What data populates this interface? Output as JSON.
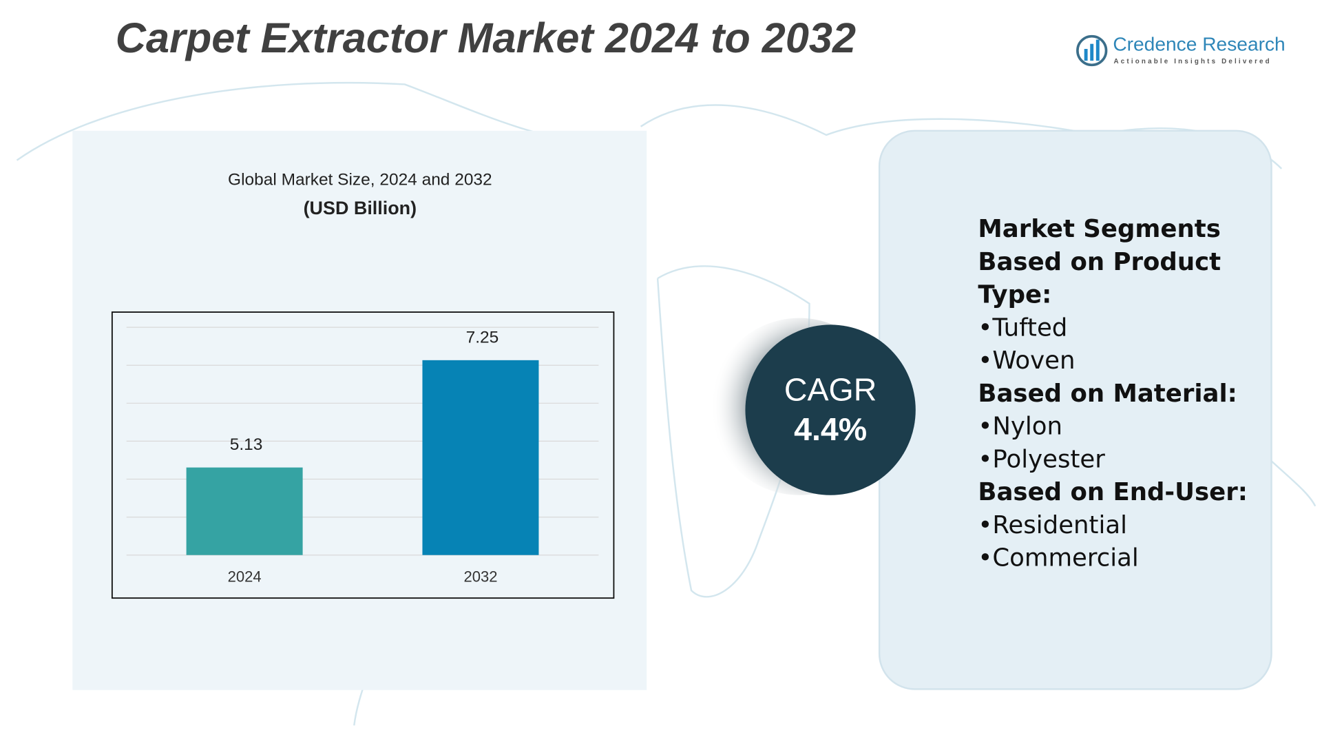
{
  "header": {
    "title": "Carpet Extractor Market 2024 to 2032",
    "logo_name": "Credence Research",
    "logo_tagline": "Actionable Insights Delivered"
  },
  "chart_data": {
    "type": "bar",
    "title": "Global Market Size, 2024 and 2032",
    "unit": "(USD Billion)",
    "categories": [
      "2024",
      "2032"
    ],
    "values": [
      5.13,
      7.25
    ],
    "colors": [
      "#35a3a3",
      "#0683b5"
    ],
    "ylim": [
      3.4,
      7.9
    ],
    "yticks": [
      3.4,
      4.15,
      4.9,
      5.65,
      6.4,
      7.15,
      7.9
    ],
    "grid": true
  },
  "cagr": {
    "label": "CAGR",
    "value": "4.4%"
  },
  "segments": {
    "groups": [
      {
        "title": "Market Segments Based on Product Type:",
        "items": [
          "Tufted",
          "Woven"
        ]
      },
      {
        "title": "Based on Material:",
        "items": [
          "Nylon",
          "Polyester"
        ]
      },
      {
        "title": "Based on End-User:",
        "items": [
          "Residential",
          "Commercial"
        ]
      }
    ]
  }
}
